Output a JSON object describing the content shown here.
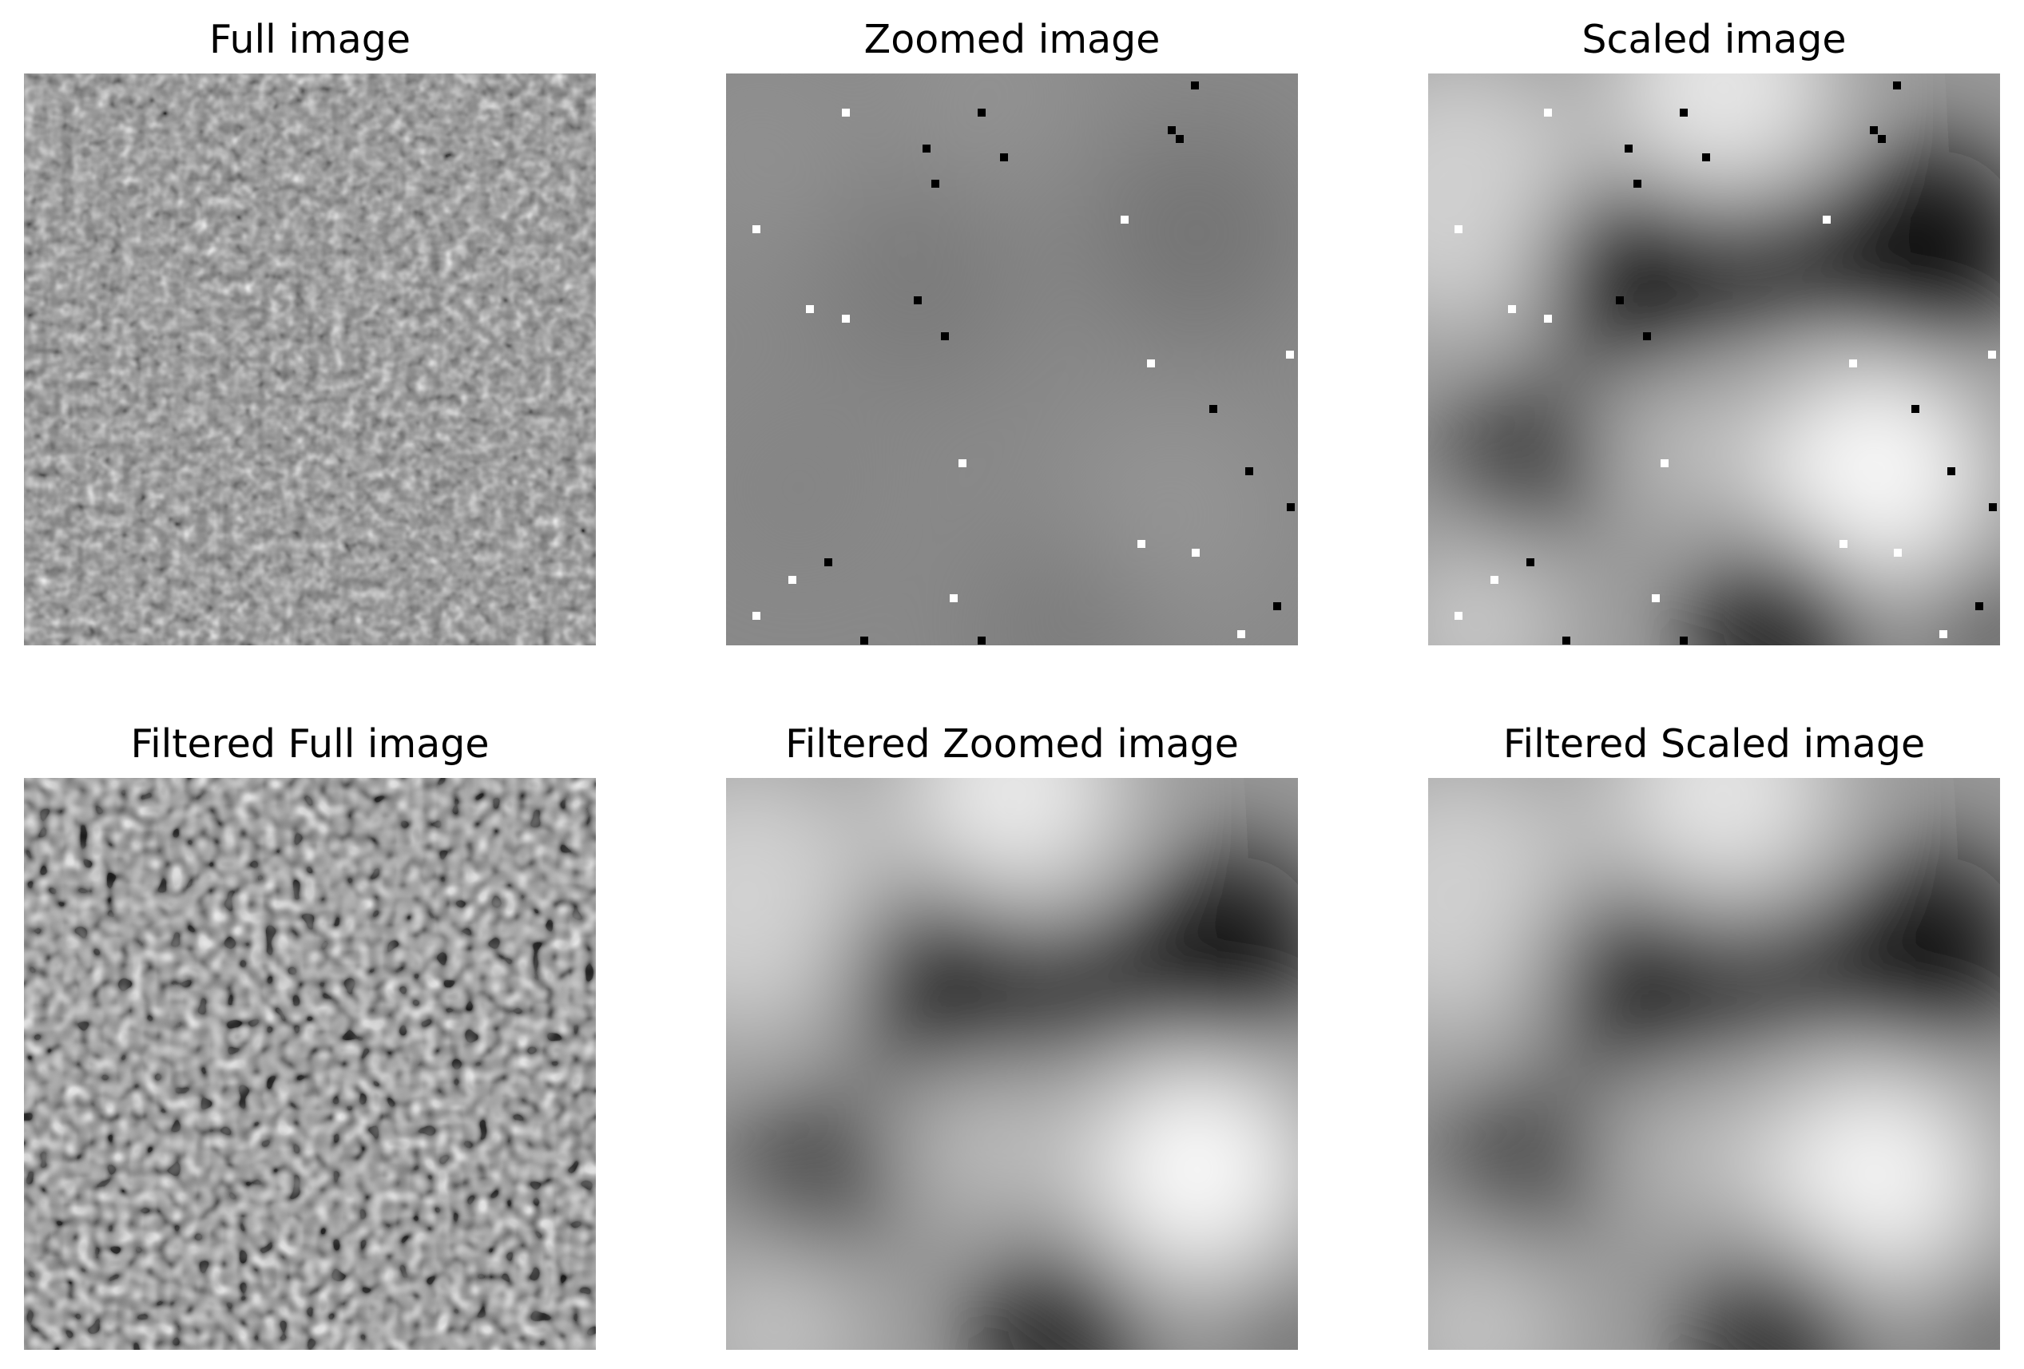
{
  "figure": {
    "panels": [
      {
        "title": "Full image"
      },
      {
        "title": "Zoomed image"
      },
      {
        "title": "Scaled image"
      },
      {
        "title": "Filtered Full image"
      },
      {
        "title": "Filtered Zoomed image"
      },
      {
        "title": "Filtered Scaled image"
      }
    ]
  }
}
